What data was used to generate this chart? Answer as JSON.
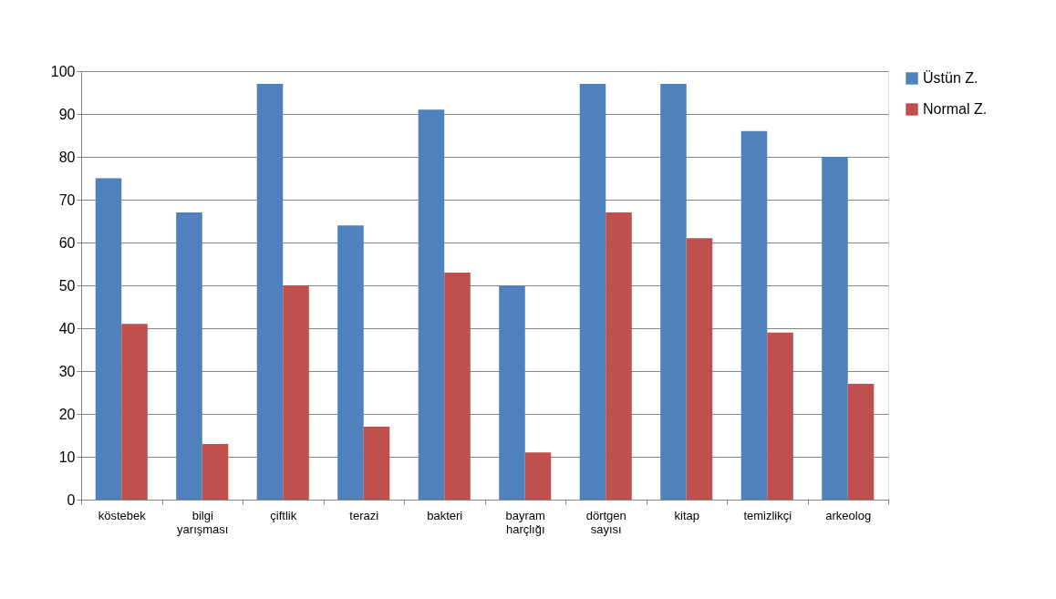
{
  "chart_data": {
    "type": "bar",
    "categories": [
      "köstebek",
      "bilgi yarışması",
      "çiftlik",
      "terazi",
      "bakteri",
      "bayram harçlığı",
      "dörtgen sayısı",
      "kitap",
      "temizlikçi",
      "arkeolog"
    ],
    "series": [
      {
        "name": "Üstün Z.",
        "color": "#4f81bd",
        "values": [
          75,
          67,
          97,
          64,
          91,
          50,
          97,
          97,
          86,
          80
        ]
      },
      {
        "name": "Normal Z.",
        "color": "#c0504d",
        "values": [
          41,
          13,
          50,
          17,
          53,
          11,
          67,
          61,
          39,
          27
        ]
      }
    ],
    "ylim": [
      0,
      100
    ],
    "yticks": [
      0,
      10,
      20,
      30,
      40,
      50,
      60,
      70,
      80,
      90,
      100
    ],
    "grid": "y",
    "legend": "right"
  }
}
